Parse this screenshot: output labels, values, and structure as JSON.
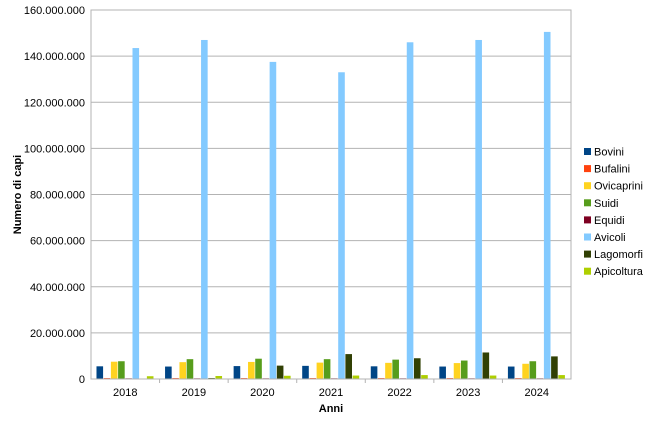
{
  "chart_data": {
    "type": "bar",
    "title": "",
    "xlabel": "Anni",
    "ylabel": "Numero di capi",
    "ylim": [
      0,
      160000000
    ],
    "yticks": [
      0,
      20000000,
      40000000,
      60000000,
      80000000,
      100000000,
      120000000,
      140000000,
      160000000
    ],
    "ytick_labels": [
      "0",
      "20.000.000",
      "40.000.000",
      "60.000.000",
      "80.000.000",
      "100.000.000",
      "120.000.000",
      "140.000.000",
      "160.000.000"
    ],
    "grid": true,
    "legend_position": "right",
    "categories": [
      "2018",
      "2019",
      "2020",
      "2021",
      "2022",
      "2023",
      "2024"
    ],
    "series": [
      {
        "name": "Bovini",
        "color": "#004586",
        "values": [
          5500000,
          5400000,
          5600000,
          5700000,
          5500000,
          5400000,
          5400000
        ]
      },
      {
        "name": "Bufalini",
        "color": "#ff420e",
        "values": [
          400000,
          400000,
          400000,
          400000,
          400000,
          400000,
          400000
        ]
      },
      {
        "name": "Ovicaprini",
        "color": "#ffd320",
        "values": [
          7500000,
          7300000,
          7400000,
          7100000,
          7000000,
          6900000,
          6600000
        ]
      },
      {
        "name": "Suidi",
        "color": "#579d1c",
        "values": [
          7700000,
          8600000,
          8800000,
          8600000,
          8400000,
          8000000,
          7700000
        ]
      },
      {
        "name": "Equidi",
        "color": "#7e0021",
        "values": [
          300000,
          300000,
          300000,
          300000,
          300000,
          300000,
          300000
        ]
      },
      {
        "name": "Avicoli",
        "color": "#83caff",
        "values": [
          143500000,
          147000000,
          137500000,
          133000000,
          146000000,
          147000000,
          150500000
        ]
      },
      {
        "name": "Lagomorfi",
        "color": "#314004",
        "values": [
          200000,
          400000,
          5800000,
          10800000,
          9000000,
          11500000,
          9800000
        ]
      },
      {
        "name": "Apicoltura",
        "color": "#aecf00",
        "values": [
          1200000,
          1300000,
          1400000,
          1500000,
          1700000,
          1500000,
          1700000
        ]
      }
    ]
  }
}
